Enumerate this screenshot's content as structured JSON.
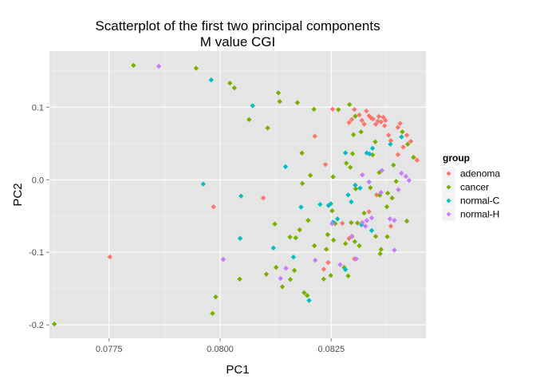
{
  "chart_data": {
    "type": "scatter",
    "title": [
      "Scatterplot of the first two principal components",
      "M value CGI"
    ],
    "xlabel": "PC1",
    "ylabel": "PC2",
    "xlim": [
      0.07616,
      0.08463
    ],
    "ylim": [
      -0.2185,
      0.1773
    ],
    "x_ticks": [
      0.0775,
      0.08,
      0.0825
    ],
    "x_tick_labels": [
      "0.0775",
      "0.0800",
      "0.0825"
    ],
    "y_ticks": [
      -0.2,
      -0.1,
      0.0,
      0.1
    ],
    "y_tick_labels": [
      "-0.2",
      "-0.1",
      "0.0",
      "0.1"
    ],
    "grid": true,
    "legend": {
      "title": "group",
      "position": "right"
    },
    "series": [
      {
        "name": "adenoma",
        "color": "#F8766D",
        "points": [
          [
            0.07752,
            -0.1063
          ],
          [
            0.07985,
            -0.0373
          ],
          [
            0.08097,
            -0.0252
          ],
          [
            0.08213,
            0.06
          ],
          [
            0.08237,
            0.021
          ],
          [
            0.08253,
            0.0972
          ],
          [
            0.08243,
            -0.1141
          ],
          [
            0.08233,
            -0.1233
          ],
          [
            0.0829,
            0.0787
          ],
          [
            0.08296,
            0.083
          ],
          [
            0.08302,
            0.0968
          ],
          [
            0.08313,
            0.0893
          ],
          [
            0.08319,
            0.0819
          ],
          [
            0.08324,
            0.0767
          ],
          [
            0.08329,
            0.0947
          ],
          [
            0.08335,
            0.0882
          ],
          [
            0.0834,
            0.085
          ],
          [
            0.08344,
            0.0838
          ],
          [
            0.0835,
            0.0765
          ],
          [
            0.08355,
            0.0808
          ],
          [
            0.08357,
            0.0871
          ],
          [
            0.08362,
            0.0797
          ],
          [
            0.08367,
            0.0861
          ],
          [
            0.0837,
            0.0744
          ],
          [
            0.08372,
            0.0818
          ],
          [
            0.08379,
            0.0614
          ],
          [
            0.08384,
            0.0539
          ],
          [
            0.084,
            0.0722
          ],
          [
            0.08405,
            0.0776
          ],
          [
            0.0842,
            0.0614
          ],
          [
            0.08429,
            0.0528
          ],
          [
            0.08443,
            0.027
          ],
          [
            0.08412,
            0.045
          ],
          [
            0.084,
            0.0347
          ],
          [
            0.08275,
            -0.06
          ],
          [
            0.0829,
            -0.081
          ],
          [
            0.08302,
            -0.109
          ],
          [
            0.08335,
            -0.044
          ],
          [
            0.08352,
            -0.0208
          ],
          [
            0.08384,
            -0.064
          ]
        ]
      },
      {
        "name": "cancer",
        "color": "#7CAE00",
        "points": [
          [
            0.07627,
            -0.1988
          ],
          [
            0.07805,
            0.1576
          ],
          [
            0.07946,
            0.1536
          ],
          [
            0.08022,
            0.1331
          ],
          [
            0.08032,
            0.1265
          ],
          [
            0.08065,
            0.0829
          ],
          [
            0.08107,
            0.0713
          ],
          [
            0.08131,
            0.1197
          ],
          [
            0.08134,
            0.1078
          ],
          [
            0.08174,
            0.1063
          ],
          [
            0.08211,
            0.0972
          ],
          [
            0.08184,
            0.0367
          ],
          [
            0.08185,
            -0.0052
          ],
          [
            0.08203,
            0.0061
          ],
          [
            0.08254,
            0.004
          ],
          [
            0.08284,
            0.0228
          ],
          [
            0.08293,
            0.0171
          ],
          [
            0.08298,
            0.0359
          ],
          [
            0.083,
            0.062
          ],
          [
            0.08317,
            0.0659
          ],
          [
            0.08349,
            0.0522
          ],
          [
            0.08266,
            0.0966
          ],
          [
            0.08291,
            0.1036
          ],
          [
            0.08304,
            0.0875
          ],
          [
            0.08343,
            0.0343
          ],
          [
            0.08358,
            0.01
          ],
          [
            0.0839,
            0.0202
          ],
          [
            0.0841,
            0.066
          ],
          [
            0.08422,
            0.049
          ],
          [
            0.08435,
            0.0308
          ],
          [
            0.08305,
            -0.0125
          ],
          [
            0.08338,
            -0.011
          ],
          [
            0.08359,
            -0.0214
          ],
          [
            0.08377,
            -0.0185
          ],
          [
            0.08396,
            -0.0022
          ],
          [
            0.08387,
            -0.0251
          ],
          [
            0.08375,
            -0.0372
          ],
          [
            0.08324,
            -0.046
          ],
          [
            0.08309,
            -0.0596
          ],
          [
            0.08295,
            -0.0591
          ],
          [
            0.08259,
            -0.0604
          ],
          [
            0.08242,
            -0.0756
          ],
          [
            0.08255,
            -0.0832
          ],
          [
            0.08239,
            -0.0958
          ],
          [
            0.08282,
            -0.088
          ],
          [
            0.08297,
            -0.078
          ],
          [
            0.08303,
            -0.0853
          ],
          [
            0.08313,
            -0.091
          ],
          [
            0.0835,
            -0.0781
          ],
          [
            0.08362,
            -0.096
          ],
          [
            0.0836,
            -0.102
          ],
          [
            0.08376,
            -0.0785
          ],
          [
            0.0842,
            -0.057
          ],
          [
            0.08288,
            -0.1325
          ],
          [
            0.08279,
            -0.1208
          ],
          [
            0.08249,
            -0.1318
          ],
          [
            0.08233,
            -0.1368
          ],
          [
            0.08196,
            -0.1595
          ],
          [
            0.08189,
            -0.1557
          ],
          [
            0.08167,
            -0.1249
          ],
          [
            0.08158,
            -0.1373
          ],
          [
            0.0814,
            -0.1475
          ],
          [
            0.08126,
            -0.1208
          ],
          [
            0.08104,
            -0.1302
          ],
          [
            0.08123,
            -0.061
          ],
          [
            0.08157,
            -0.079
          ],
          [
            0.08179,
            -0.069
          ],
          [
            0.0817,
            -0.08
          ],
          [
            0.08198,
            -0.056
          ],
          [
            0.08212,
            -0.091
          ],
          [
            0.08044,
            -0.137
          ],
          [
            0.0799,
            -0.1615
          ],
          [
            0.07983,
            -0.1842
          ],
          [
            0.08244,
            -0.0353
          ],
          [
            0.08252,
            -0.0428
          ]
        ]
      },
      {
        "name": "normal-C",
        "color": "#00BFC4",
        "points": [
          [
            0.0798,
            0.1375
          ],
          [
            0.08073,
            0.102
          ],
          [
            0.07962,
            -0.006
          ],
          [
            0.08047,
            -0.0225
          ],
          [
            0.08045,
            -0.0808
          ],
          [
            0.0812,
            -0.094
          ],
          [
            0.08147,
            0.018
          ],
          [
            0.08182,
            -0.0377
          ],
          [
            0.08165,
            -0.1066
          ],
          [
            0.082,
            -0.1663
          ],
          [
            0.08225,
            -0.034
          ],
          [
            0.08244,
            -0.0355
          ],
          [
            0.08249,
            -0.033
          ],
          [
            0.08288,
            -0.021
          ],
          [
            0.08304,
            -0.0075
          ],
          [
            0.08315,
            -0.0115
          ],
          [
            0.08295,
            -0.0305
          ],
          [
            0.08282,
            0.037
          ],
          [
            0.0833,
            0.0369
          ],
          [
            0.08336,
            0.0356
          ],
          [
            0.08343,
            0.0434
          ],
          [
            0.08383,
            0.049
          ],
          [
            0.08408,
            0.059
          ],
          [
            0.08264,
            -0.054
          ],
          [
            0.08254,
            -0.0583
          ],
          [
            0.08282,
            -0.1238
          ],
          [
            0.08318,
            -0.062
          ],
          [
            0.08341,
            -0.07
          ]
        ]
      },
      {
        "name": "normal-H",
        "color": "#C77CFF",
        "points": [
          [
            0.07862,
            0.1564
          ],
          [
            0.08007,
            -0.1097
          ],
          [
            0.08136,
            -0.136
          ],
          [
            0.08148,
            -0.122
          ],
          [
            0.08214,
            -0.111
          ],
          [
            0.0827,
            -0.117
          ],
          [
            0.08306,
            -0.109
          ],
          [
            0.08296,
            -0.078
          ],
          [
            0.08327,
            -0.064
          ],
          [
            0.0833,
            -0.0563
          ],
          [
            0.08341,
            -0.0525
          ],
          [
            0.0832,
            -0.059
          ],
          [
            0.0832,
            0.0066
          ],
          [
            0.08335,
            -0.003
          ],
          [
            0.08362,
            -0.0175
          ],
          [
            0.08382,
            -0.054
          ],
          [
            0.08392,
            -0.056
          ],
          [
            0.08392,
            -0.097
          ],
          [
            0.08364,
            0.0128
          ],
          [
            0.08401,
            -0.0137
          ],
          [
            0.08408,
            0.009
          ],
          [
            0.08418,
            0.0046
          ],
          [
            0.08425,
            -0.001
          ],
          [
            0.08252,
            -0.0606
          ]
        ]
      }
    ]
  }
}
